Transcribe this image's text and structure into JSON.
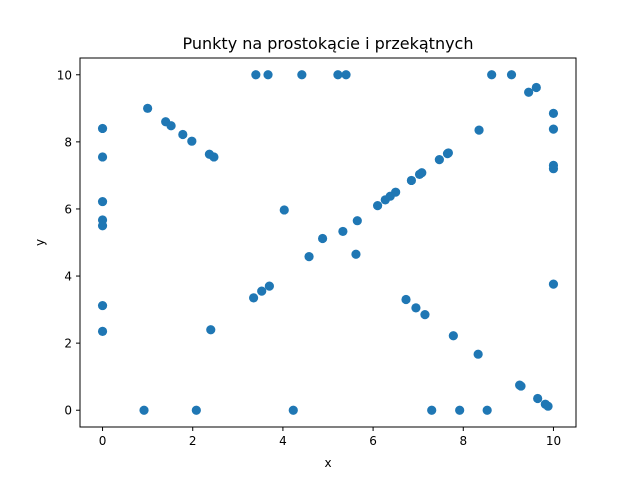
{
  "chart_data": {
    "type": "scatter",
    "title": "Punkty na prostokącie i przekątnych",
    "xlabel": "x",
    "ylabel": "y",
    "xlim": [
      -0.5,
      10.5
    ],
    "ylim": [
      -0.5,
      10.5
    ],
    "xticks": [
      0,
      2,
      4,
      6,
      8,
      10
    ],
    "yticks": [
      0,
      2,
      4,
      6,
      8,
      10
    ],
    "grid": false,
    "color": "#1f77b4",
    "series": [
      {
        "points": [
          [
            0,
            8.4
          ],
          [
            0,
            7.55
          ],
          [
            0,
            6.22
          ],
          [
            0,
            5.67
          ],
          [
            0,
            5.5
          ],
          [
            0,
            3.12
          ],
          [
            0,
            2.35
          ],
          [
            10,
            8.85
          ],
          [
            10,
            8.38
          ],
          [
            10,
            7.3
          ],
          [
            10,
            7.2
          ],
          [
            10,
            3.76
          ],
          [
            3.4,
            10
          ],
          [
            3.67,
            10
          ],
          [
            4.42,
            10
          ],
          [
            5.22,
            10
          ],
          [
            5.4,
            10
          ],
          [
            8.63,
            10
          ],
          [
            9.07,
            10
          ],
          [
            0.92,
            0
          ],
          [
            2.08,
            0
          ],
          [
            4.23,
            0
          ],
          [
            7.3,
            0
          ],
          [
            7.92,
            0
          ],
          [
            8.53,
            0
          ],
          [
            1.0,
            9.0
          ],
          [
            1.4,
            8.6
          ],
          [
            1.52,
            8.48
          ],
          [
            1.78,
            8.22
          ],
          [
            1.98,
            8.02
          ],
          [
            2.37,
            7.63
          ],
          [
            2.47,
            7.55
          ],
          [
            4.03,
            5.97
          ],
          [
            5.62,
            4.65
          ],
          [
            6.73,
            3.3
          ],
          [
            6.95,
            3.05
          ],
          [
            7.15,
            2.85
          ],
          [
            7.78,
            2.22
          ],
          [
            8.33,
            1.67
          ],
          [
            9.25,
            0.75
          ],
          [
            9.28,
            0.72
          ],
          [
            9.65,
            0.35
          ],
          [
            9.82,
            0.18
          ],
          [
            9.88,
            0.12
          ],
          [
            2.4,
            2.4
          ],
          [
            3.35,
            3.35
          ],
          [
            3.53,
            3.55
          ],
          [
            3.7,
            3.7
          ],
          [
            4.58,
            4.58
          ],
          [
            4.88,
            5.12
          ],
          [
            5.33,
            5.33
          ],
          [
            5.65,
            5.65
          ],
          [
            6.1,
            6.1
          ],
          [
            6.27,
            6.27
          ],
          [
            6.38,
            6.38
          ],
          [
            6.5,
            6.5
          ],
          [
            6.85,
            6.85
          ],
          [
            7.03,
            7.03
          ],
          [
            7.08,
            7.08
          ],
          [
            7.47,
            7.47
          ],
          [
            7.65,
            7.65
          ],
          [
            7.67,
            7.67
          ],
          [
            8.35,
            8.35
          ],
          [
            9.45,
            9.48
          ],
          [
            9.62,
            9.62
          ]
        ]
      }
    ]
  }
}
